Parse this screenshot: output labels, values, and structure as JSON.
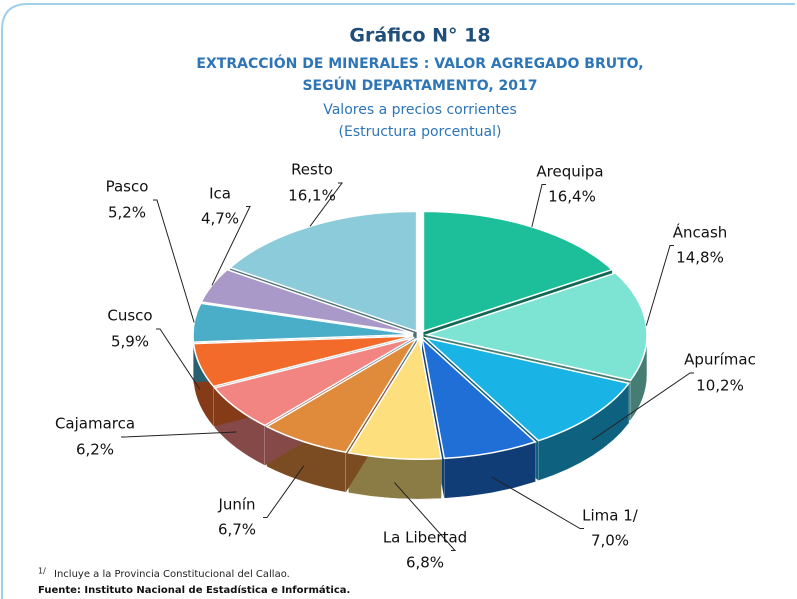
{
  "chart_data": {
    "type": "pie",
    "title": "Gráfico N° 18",
    "subtitle": [
      "EXTRACCIÓN DE MINERALES : VALOR AGREGADO BRUTO,",
      "SEGÚN DEPARTAMENTO, 2017"
    ],
    "note": [
      "Valores a precios corrientes",
      "(Estructura porcentual)"
    ],
    "categories": [
      "Arequipa",
      "Áncash",
      "Apurímac",
      "Lima 1/",
      "La Libertad",
      "Junín",
      "Cajamarca",
      "Cusco",
      "Pasco",
      "Ica",
      "Resto"
    ],
    "values": [
      16.4,
      14.8,
      10.2,
      7.0,
      6.8,
      6.7,
      6.2,
      5.9,
      5.2,
      4.7,
      16.1
    ],
    "value_labels": [
      "16,4%",
      "14,8%",
      "10,2%",
      "7,0%",
      "6,8%",
      "6,7%",
      "6,2%",
      "5,9%",
      "5,2%",
      "4,7%",
      "16,1%"
    ],
    "colors": [
      "#1dbf9a",
      "#7de3d3",
      "#1ab3e6",
      "#1f6fd6",
      "#fddf7d",
      "#e08a3c",
      "#f28482",
      "#f36b2b",
      "#4aaec9",
      "#a999c8",
      "#8ccbd9"
    ],
    "footnote": {
      "marker": "1/",
      "text": "Incluye a la Provincia Constitucional del Callao."
    },
    "source": "Fuente: Instituto Nacional de Estadística e Informática."
  }
}
